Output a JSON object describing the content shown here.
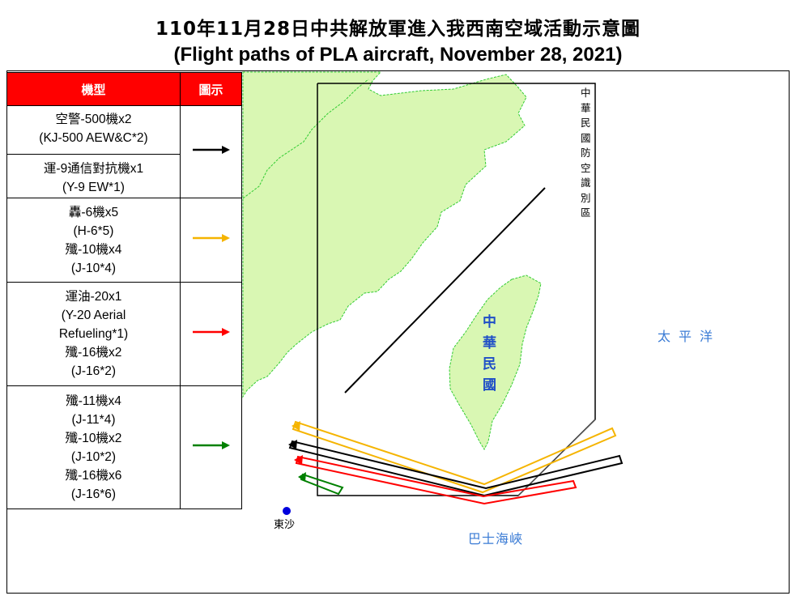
{
  "title": {
    "zh": "110年11月28日中共解放軍進入我西南空域活動示意圖",
    "en": "(Flight paths of PLA aircraft, November 28, 2021)"
  },
  "legend": {
    "header_type": "機型",
    "header_icon": "圖示",
    "groups": [
      {
        "color": "#000000",
        "lines": [
          "空警-500機x2",
          "(KJ-500 AEW&C*2)",
          "運-9通信對抗機x1",
          "(Y-9 EW*1)"
        ]
      },
      {
        "color": "#f5b400",
        "lines": [
          "轟-6機x5",
          "(H-6*5)",
          "殲-10機x4",
          "(J-10*4)"
        ]
      },
      {
        "color": "#ff0000",
        "lines": [
          "運油-20x1",
          "(Y-20 Aerial",
          "Refueling*1)",
          "殲-16機x2",
          "(J-16*2)"
        ]
      },
      {
        "color": "#008000",
        "lines": [
          "殲-11機x4",
          "(J-11*4)",
          "殲-10機x2",
          "(J-10*2)",
          "殲-16機x6",
          "(J-16*6)"
        ]
      }
    ]
  },
  "map": {
    "adiz_label": "中華民國防空識別區",
    "taiwan_label": "中華民國",
    "pacific_label": "太平洋",
    "bashi_label": "巴士海峽",
    "dongsha_label": "東沙"
  },
  "colors": {
    "land": "#d9f7b3",
    "coast": "#33cc33",
    "header_red": "#ff0000",
    "label_blue": "#1f4fc7",
    "sea_label_blue": "#3a7bd5"
  }
}
